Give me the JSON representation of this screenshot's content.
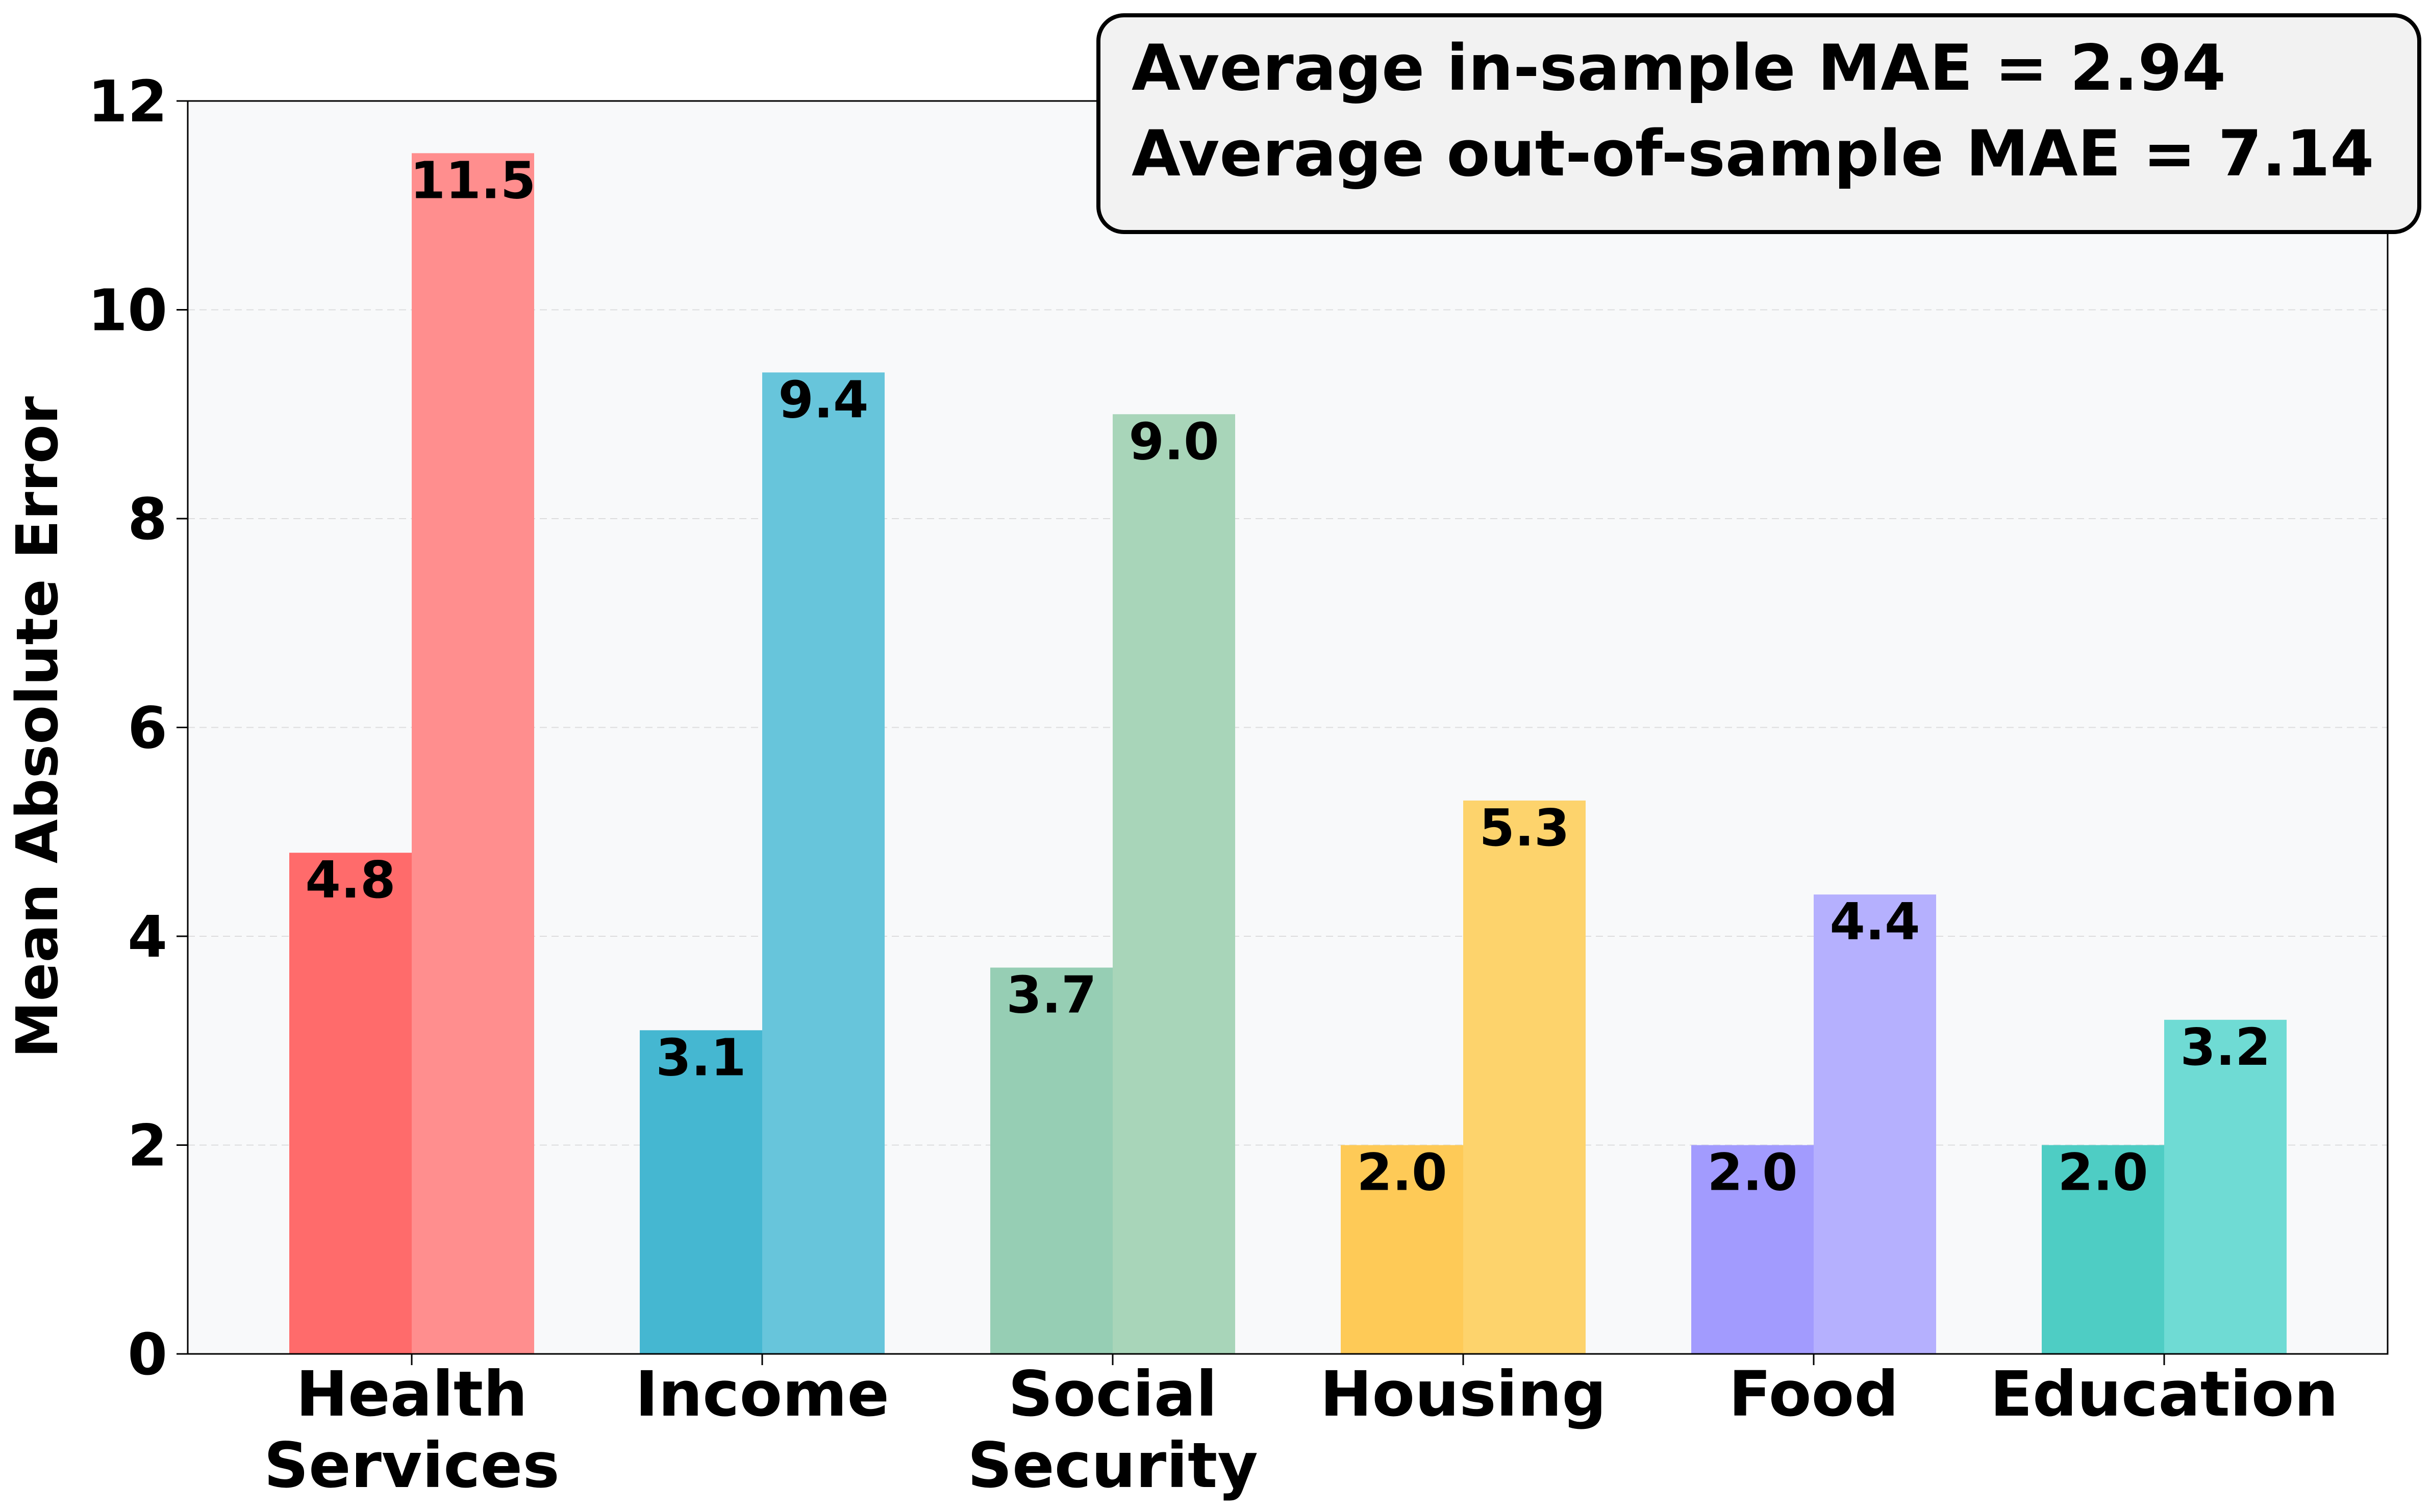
{
  "chart_data": {
    "type": "bar",
    "categories": [
      [
        "Health",
        "Services"
      ],
      [
        "Income"
      ],
      [
        "Social",
        "Security"
      ],
      [
        "Housing"
      ],
      [
        "Food"
      ],
      [
        "Education"
      ]
    ],
    "series": [
      {
        "values": [
          4.8,
          3.1,
          3.7,
          2.0,
          2.0,
          2.0
        ]
      },
      {
        "values": [
          11.5,
          9.4,
          9.0,
          5.3,
          4.4,
          3.2
        ]
      }
    ],
    "colors": {
      "in_sample": [
        "#ff6b6b",
        "#45b7d1",
        "#96ceb4",
        "#feca57",
        "#a29bfe",
        "#4ecdc4"
      ],
      "out_of_sample": [
        "#ff8e8e",
        "#67c5db",
        "#a8d5b9",
        "#fdd36c",
        "#b5b0fe",
        "#6fdbd4"
      ]
    },
    "ylabel": "Mean Absolute Error",
    "ylim": [
      0,
      12
    ],
    "yticks": [
      0,
      2,
      4,
      6,
      8,
      10,
      12
    ],
    "grid": "horizontal dashed",
    "annotation": {
      "lines": [
        "Average in-sample MAE = 2.94",
        "Average out-of-sample MAE = 7.14"
      ],
      "placement": "top-right"
    }
  }
}
